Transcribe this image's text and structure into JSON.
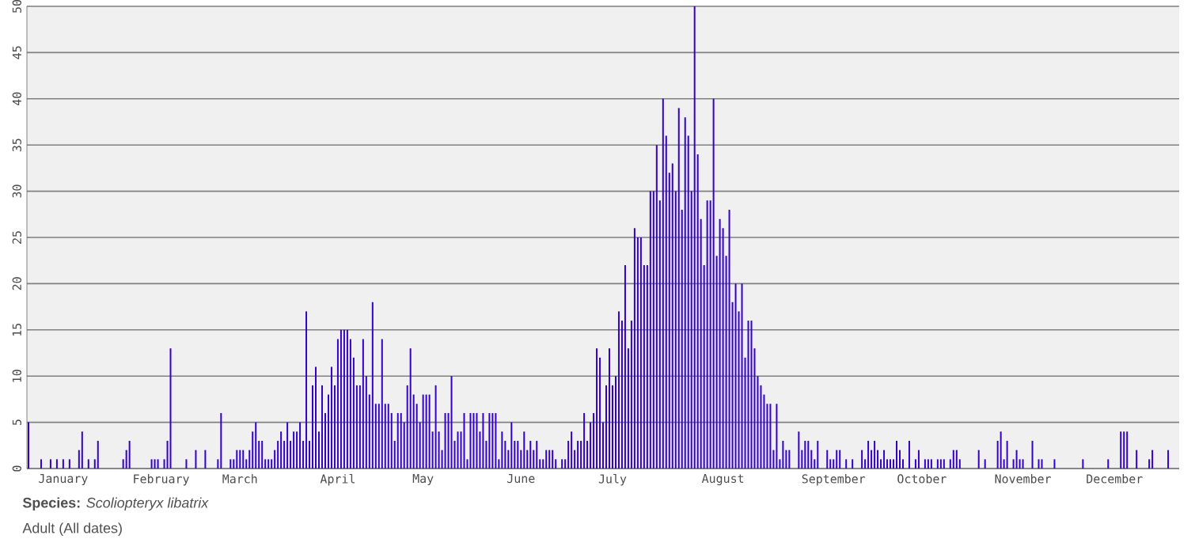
{
  "chart_data": {
    "type": "bar",
    "annotations": [
      "**Species:** *Scoliopteryx libatrix*",
      "Adult (All dates)"
    ],
    "categories": [
      null,
      null,
      null,
      null,
      null,
      null,
      null,
      null,
      null,
      null,
      null,
      "January",
      null,
      null,
      null,
      null,
      null,
      null,
      null,
      null,
      null,
      null,
      null,
      null,
      null,
      null,
      null,
      null,
      null,
      null,
      null,
      null,
      null,
      null,
      null,
      null,
      null,
      null,
      null,
      null,
      null,
      null,
      "February",
      null,
      null,
      null,
      null,
      null,
      null,
      null,
      null,
      null,
      null,
      null,
      null,
      null,
      null,
      null,
      null,
      null,
      null,
      null,
      null,
      null,
      null,
      null,
      null,
      "March",
      null,
      null,
      null,
      null,
      null,
      null,
      null,
      null,
      null,
      null,
      null,
      null,
      null,
      null,
      null,
      null,
      null,
      null,
      null,
      null,
      null,
      null,
      null,
      null,
      null,
      null,
      null,
      null,
      null,
      null,
      "April",
      null,
      null,
      null,
      null,
      null,
      null,
      null,
      null,
      null,
      null,
      null,
      null,
      null,
      null,
      null,
      null,
      null,
      null,
      null,
      null,
      null,
      null,
      null,
      null,
      null,
      null,
      "May",
      null,
      null,
      null,
      null,
      null,
      null,
      null,
      null,
      null,
      null,
      null,
      null,
      null,
      null,
      null,
      null,
      null,
      null,
      null,
      null,
      null,
      null,
      null,
      null,
      null,
      null,
      null,
      null,
      null,
      null,
      "June",
      null,
      null,
      null,
      null,
      null,
      null,
      null,
      null,
      null,
      null,
      null,
      null,
      null,
      null,
      null,
      null,
      null,
      null,
      null,
      null,
      null,
      null,
      null,
      null,
      null,
      null,
      null,
      null,
      "July",
      null,
      null,
      null,
      null,
      null,
      null,
      null,
      null,
      null,
      null,
      null,
      null,
      null,
      null,
      null,
      null,
      null,
      null,
      null,
      null,
      null,
      null,
      null,
      null,
      null,
      null,
      null,
      null,
      null,
      null,
      null,
      null,
      null,
      null,
      "August",
      null,
      null,
      null,
      null,
      null,
      null,
      null,
      null,
      null,
      null,
      null,
      null,
      null,
      null,
      null,
      null,
      null,
      null,
      null,
      null,
      null,
      null,
      null,
      null,
      null,
      null,
      null,
      null,
      null,
      null,
      null,
      null,
      null,
      null,
      "September",
      null,
      null,
      null,
      null,
      null,
      null,
      null,
      null,
      null,
      null,
      null,
      null,
      null,
      null,
      null,
      null,
      null,
      null,
      null,
      null,
      null,
      null,
      null,
      null,
      null,
      null,
      null,
      "October",
      null,
      null,
      null,
      null,
      null,
      null,
      null,
      null,
      null,
      null,
      null,
      null,
      null,
      null,
      null,
      null,
      null,
      null,
      null,
      null,
      null,
      null,
      null,
      null,
      null,
      null,
      null,
      null,
      null,
      null,
      null,
      "November",
      null,
      null,
      null,
      null,
      null,
      null,
      null,
      null,
      null,
      null,
      null,
      null,
      null,
      null,
      null,
      null,
      null,
      null,
      null,
      null,
      null,
      null,
      null,
      null,
      null,
      null,
      null,
      null,
      "December",
      null,
      null,
      null,
      null,
      null,
      null,
      null,
      null,
      null,
      null,
      null,
      null,
      null,
      null,
      null,
      null,
      null,
      null,
      null,
      null
    ],
    "values": [
      5,
      0,
      0,
      0,
      1,
      0,
      0,
      1,
      0,
      1,
      0,
      1,
      0,
      1,
      0,
      0,
      2,
      4,
      0,
      1,
      0,
      1,
      3,
      0,
      0,
      0,
      0,
      0,
      0,
      0,
      1,
      2,
      3,
      0,
      0,
      0,
      0,
      0,
      0,
      1,
      1,
      1,
      0,
      1,
      3,
      13,
      0,
      0,
      0,
      0,
      1,
      0,
      0,
      2,
      0,
      0,
      2,
      0,
      0,
      0,
      1,
      6,
      0,
      0,
      1,
      1,
      2,
      2,
      2,
      1,
      2,
      4,
      5,
      3,
      3,
      1,
      1,
      1,
      2,
      3,
      4,
      3,
      5,
      3,
      4,
      4,
      5,
      3,
      17,
      3,
      9,
      11,
      4,
      9,
      6,
      8,
      11,
      9,
      14,
      15,
      15,
      15,
      14,
      12,
      9,
      9,
      14,
      10,
      8,
      18,
      7,
      7,
      14,
      7,
      7,
      6,
      3,
      6,
      6,
      5,
      9,
      13,
      8,
      7,
      5,
      8,
      8,
      8,
      4,
      9,
      4,
      2,
      6,
      6,
      10,
      3,
      4,
      4,
      6,
      1,
      6,
      6,
      6,
      4,
      6,
      3,
      6,
      6,
      6,
      1,
      4,
      3,
      2,
      5,
      3,
      3,
      2,
      4,
      2,
      3,
      2,
      3,
      1,
      1,
      2,
      2,
      2,
      1,
      0,
      1,
      1,
      3,
      4,
      2,
      3,
      3,
      6,
      3,
      5,
      6,
      13,
      12,
      5,
      9,
      13,
      9,
      10,
      17,
      16,
      22,
      13,
      16,
      26,
      25,
      25,
      22,
      22,
      30,
      30,
      35,
      29,
      40,
      36,
      32,
      33,
      30,
      39,
      28,
      38,
      36,
      30,
      50,
      34,
      27,
      22,
      29,
      29,
      40,
      23,
      27,
      26,
      23,
      28,
      18,
      20,
      17,
      20,
      12,
      16,
      16,
      13,
      10,
      9,
      8,
      7,
      7,
      2,
      7,
      1,
      3,
      2,
      2,
      0,
      0,
      4,
      2,
      3,
      3,
      2,
      1,
      3,
      0,
      0,
      2,
      1,
      1,
      2,
      2,
      0,
      1,
      0,
      1,
      0,
      0,
      2,
      1,
      3,
      2,
      3,
      2,
      1,
      2,
      1,
      1,
      1,
      3,
      2,
      1,
      0,
      3,
      0,
      1,
      2,
      0,
      1,
      1,
      1,
      0,
      1,
      1,
      1,
      0,
      1,
      2,
      2,
      1,
      0,
      0,
      0,
      0,
      0,
      2,
      0,
      1,
      0,
      0,
      0,
      3,
      4,
      1,
      3,
      0,
      1,
      2,
      1,
      1,
      0,
      0,
      3,
      0,
      1,
      1,
      0,
      0,
      0,
      1,
      0,
      0,
      0,
      0,
      0,
      0,
      0,
      0,
      1,
      0,
      0,
      0,
      0,
      0,
      0,
      0,
      1,
      0,
      0,
      0,
      4,
      4,
      4,
      0,
      0,
      2,
      0,
      0,
      0,
      1,
      2,
      0,
      0,
      0,
      0,
      2,
      0,
      0,
      0
    ],
    "color": "#3300cc",
    "ylim": [
      0,
      50
    ],
    "yticks": [
      0,
      5,
      10,
      15,
      20,
      25,
      30,
      35,
      40,
      45,
      50
    ],
    "grid": "y"
  }
}
